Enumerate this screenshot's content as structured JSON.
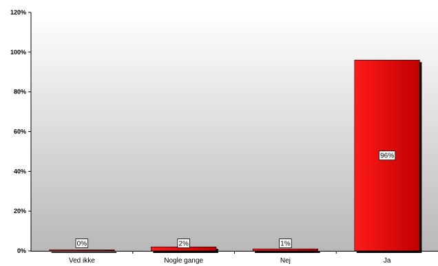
{
  "chart_data": {
    "type": "bar",
    "categories": [
      "Ved ikke",
      "Nogle gange",
      "Nej",
      "Ja"
    ],
    "values": [
      0,
      2,
      1,
      96
    ],
    "data_labels": [
      "0%",
      "2%",
      "1%",
      "96%"
    ],
    "yticks": [
      0,
      20,
      40,
      60,
      80,
      100,
      120
    ],
    "ytick_labels": [
      "0%",
      "20%",
      "40%",
      "60%",
      "80%",
      "100%",
      "120%"
    ],
    "ylim": [
      0,
      120
    ],
    "title": "",
    "xlabel": "",
    "ylabel": "",
    "grid": false,
    "legend": "none",
    "colors": {
      "bar_light": "#ff1a1a",
      "bar_dark": "#c00000",
      "bar_shadow": "#000000",
      "plot_top": "#ffffff",
      "plot_bottom": "#b8b8b8"
    }
  }
}
